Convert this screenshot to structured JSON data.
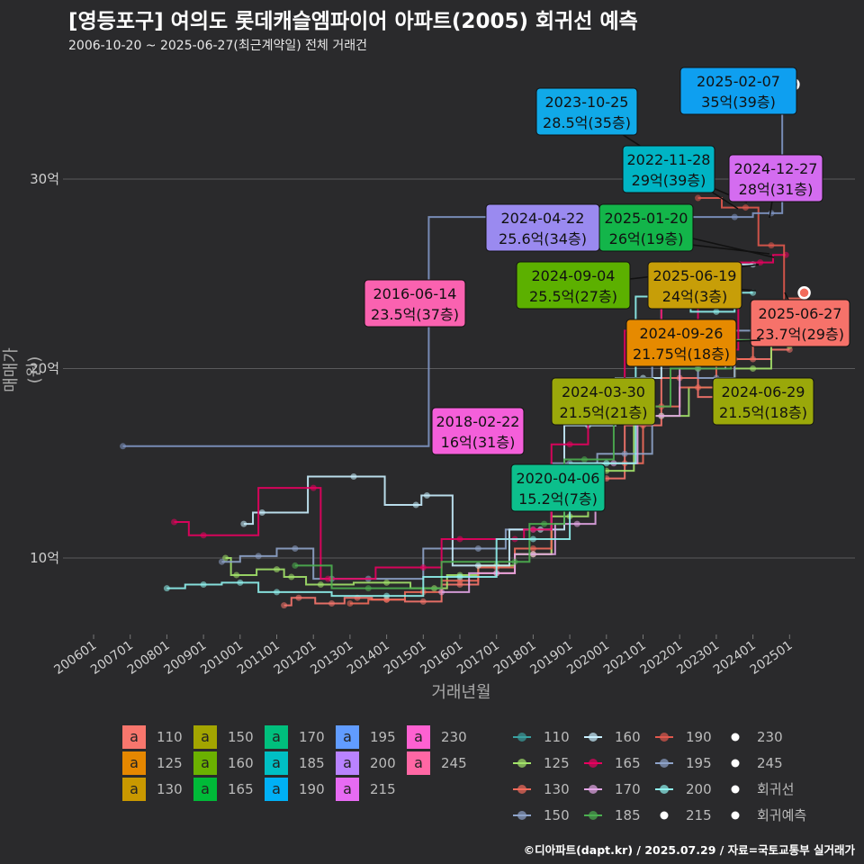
{
  "title": "[영등포구] 여의도 롯데캐슬엠파이어 아파트(2005) 회귀선 예측",
  "subtitle": "2006-10-20 ~ 2025-06-27(최근계약일) 전체 거래건",
  "credit": "©디아파트(dapt.kr) / 2025.07.29 / 자료=국토교통부 실거래가",
  "chart_data": {
    "type": "line",
    "xlabel": "거래년월",
    "ylabel": "매매가(원)",
    "x_ticks": [
      "200601",
      "200701",
      "200801",
      "200901",
      "201001",
      "201101",
      "201201",
      "201301",
      "201401",
      "201501",
      "201601",
      "201701",
      "201801",
      "201901",
      "202001",
      "202101",
      "202201",
      "202301",
      "202401",
      "202501"
    ],
    "y_ticks": [
      "10억",
      "20억",
      "30억"
    ],
    "y_tick_values": [
      10,
      20,
      30
    ],
    "y_unit": "억",
    "ylim": [
      6,
      34.5
    ],
    "xlim": [
      2005.6,
      2025.9
    ],
    "grid": true,
    "series": [
      {
        "name": "110",
        "color": "#f8766d",
        "points": [
          [
            2011.2,
            7.5
          ],
          [
            2011.6,
            7.9
          ],
          [
            2012.5,
            7.6
          ],
          [
            2013.2,
            7.9
          ],
          [
            2014.0,
            7.8
          ],
          [
            2015.0,
            7.7
          ],
          [
            2016.0,
            8.6
          ],
          [
            2017.0,
            9.2
          ],
          [
            2018.0,
            10.2
          ],
          [
            2019.0,
            12.8
          ],
          [
            2020.0,
            14.2
          ],
          [
            2021.0,
            17.0
          ],
          [
            2022.0,
            19.5
          ],
          [
            2023.0,
            18.5
          ],
          [
            2024.0,
            20.5
          ],
          [
            2025.0,
            21.0
          ]
        ]
      },
      {
        "name": "125",
        "color": "#a3e36a",
        "points": [
          [
            2009.6,
            10.0
          ],
          [
            2009.9,
            9.1
          ],
          [
            2011.0,
            9.4
          ],
          [
            2011.4,
            9.0
          ],
          [
            2012.2,
            8.6
          ],
          [
            2014.0,
            8.7
          ],
          [
            2015.3,
            8.4
          ],
          [
            2016.0,
            9.1
          ],
          [
            2017.0,
            9.6
          ],
          [
            2018.0,
            10.2
          ],
          [
            2019.0,
            12.2
          ],
          [
            2020.0,
            14.6
          ],
          [
            2021.5,
            17.5
          ],
          [
            2023.0,
            19.0
          ],
          [
            2024.0,
            20.0
          ],
          [
            2025.0,
            21.2
          ]
        ]
      },
      {
        "name": "130",
        "color": "#f26b5b",
        "points": [
          [
            2013.0,
            7.6
          ],
          [
            2014.0,
            7.8
          ],
          [
            2015.0,
            8.2
          ],
          [
            2016.0,
            8.8
          ],
          [
            2017.0,
            9.5
          ],
          [
            2018.0,
            10.5
          ],
          [
            2019.0,
            13.0
          ],
          [
            2020.5,
            15.0
          ],
          [
            2021.5,
            18.0
          ],
          [
            2022.5,
            19.0
          ],
          [
            2023.5,
            20.5
          ],
          [
            2024.5,
            21.75
          ],
          [
            2025.4,
            23.7
          ]
        ]
      },
      {
        "name": "150",
        "color": "#8ea3c9",
        "points": [
          [
            2009.5,
            9.8
          ],
          [
            2010.5,
            10.1
          ],
          [
            2011.5,
            10.5
          ],
          [
            2012.5,
            8.9
          ],
          [
            2013.5,
            8.9
          ],
          [
            2016.5,
            10.5
          ],
          [
            2018.0,
            11.5
          ],
          [
            2019.0,
            15.0
          ],
          [
            2020.5,
            15.5
          ],
          [
            2022.0,
            21.0
          ],
          [
            2023.0,
            19.5
          ],
          [
            2024.0,
            22.0
          ]
        ]
      },
      {
        "name": "160",
        "color": "#c9f0ff",
        "points": [
          [
            2010.1,
            11.8
          ],
          [
            2010.6,
            12.4
          ],
          [
            2013.1,
            14.3
          ],
          [
            2014.8,
            12.8
          ],
          [
            2015.1,
            13.3
          ],
          [
            2016.5,
            9.6
          ],
          [
            2018.2,
            11.5
          ],
          [
            2019.5,
            17.0
          ],
          [
            2021.0,
            19.5
          ],
          [
            2022.0,
            25.5
          ],
          [
            2023.0,
            23.5
          ],
          [
            2024.0,
            25.5
          ]
        ]
      },
      {
        "name": "165",
        "color": "#e8005f",
        "points": [
          [
            2008.2,
            11.9
          ],
          [
            2009.0,
            11.2
          ],
          [
            2012.0,
            13.7
          ],
          [
            2012.4,
            8.9
          ],
          [
            2015.0,
            9.5
          ],
          [
            2016.0,
            11.0
          ],
          [
            2017.5,
            11.0
          ],
          [
            2018.0,
            11.5
          ],
          [
            2019.0,
            16.0
          ],
          [
            2020.0,
            19.0
          ],
          [
            2021.0,
            22.0
          ],
          [
            2022.0,
            24.5
          ],
          [
            2023.0,
            21.0
          ],
          [
            2024.2,
            25.6
          ],
          [
            2024.9,
            26.0
          ]
        ]
      },
      {
        "name": "170",
        "color": "#e3a5e6",
        "points": [
          [
            2015.5,
            8.2
          ],
          [
            2017.0,
            9.2
          ],
          [
            2018.0,
            10.2
          ],
          [
            2019.2,
            11.8
          ],
          [
            2020.2,
            15.0
          ],
          [
            2021.5,
            17.5
          ],
          [
            2022.5,
            20.0
          ],
          [
            2024.0,
            21.5
          ]
        ]
      },
      {
        "name": "185",
        "color": "#4caf50",
        "points": [
          [
            2011.5,
            9.6
          ],
          [
            2013.5,
            8.4
          ],
          [
            2017.5,
            9.8
          ],
          [
            2018.3,
            11.8
          ],
          [
            2019.4,
            15.2
          ],
          [
            2021.0,
            18.0
          ],
          [
            2022.5,
            20.0
          ],
          [
            2024.3,
            21.5
          ]
        ]
      },
      {
        "name": "190",
        "color": "#e0584d",
        "points": [
          [
            2022.5,
            29.0
          ],
          [
            2023.8,
            28.5
          ],
          [
            2024.5,
            26.5
          ],
          [
            2025.2,
            21.8
          ]
        ]
      },
      {
        "name": "195",
        "color": "#7f96c4",
        "points": [
          [
            2006.8,
            15.9
          ],
          [
            2023.5,
            28.0
          ],
          [
            2024.5,
            28.2
          ],
          [
            2025.1,
            35.0
          ]
        ]
      },
      {
        "name": "200",
        "color": "#8ff2ee",
        "points": [
          [
            2008.0,
            8.4
          ],
          [
            2009.0,
            8.6
          ],
          [
            2010.0,
            8.7
          ],
          [
            2011.0,
            8.2
          ],
          [
            2014.0,
            8.0
          ],
          [
            2016.0,
            9.0
          ],
          [
            2018.0,
            11.0
          ],
          [
            2020.0,
            15.0
          ],
          [
            2021.6,
            23.8
          ],
          [
            2023.0,
            23.0
          ],
          [
            2024.0,
            24.0
          ]
        ]
      }
    ],
    "annotations": [
      {
        "date": "2025-02-07",
        "price": "35억(39층)",
        "color": "#0e9ff0"
      },
      {
        "date": "2023-10-25",
        "price": "28.5억(35층)",
        "color": "#10a9e8"
      },
      {
        "date": "2022-11-28",
        "price": "29억(39층)",
        "color": "#00b4c4"
      },
      {
        "date": "2024-12-27",
        "price": "28억(31층)",
        "color": "#d46cf0"
      },
      {
        "date": "2024-04-22",
        "price": "25.6억(34층)",
        "color": "#9a8af0"
      },
      {
        "date": "2025-01-20",
        "price": "26억(19층)",
        "color": "#13b54a"
      },
      {
        "date": "2024-09-04",
        "price": "25.5억(27층)",
        "color": "#5cb000"
      },
      {
        "date": "2025-06-19",
        "price": "24억(3층)",
        "color": "#c79e08"
      },
      {
        "date": "2016-06-14",
        "price": "23.5억(37층)",
        "color": "#fa62b0"
      },
      {
        "date": "2025-06-27",
        "price": "23.7억(29층)",
        "color": "#f6726a"
      },
      {
        "date": "2024-09-26",
        "price": "21.75억(18층)",
        "color": "#e68a00"
      },
      {
        "date": "2024-03-30",
        "price": "21.5억(21층)",
        "color": "#9aa80a"
      },
      {
        "date": "2024-06-29",
        "price": "21.5억(18층)",
        "color": "#9aa80a"
      },
      {
        "date": "2018-02-22",
        "price": "16억(31층)",
        "color": "#f45fda"
      },
      {
        "date": "2020-04-06",
        "price": "15.2억(7층)",
        "color": "#0cbf8c"
      }
    ]
  },
  "legend_fill": {
    "glyph": "a",
    "items": [
      {
        "label": "110",
        "color": "#f8766d"
      },
      {
        "label": "125",
        "color": "#e58700"
      },
      {
        "label": "130",
        "color": "#c99800"
      },
      {
        "label": "150",
        "color": "#a3a500"
      },
      {
        "label": "160",
        "color": "#6bb100"
      },
      {
        "label": "165",
        "color": "#00ba38"
      },
      {
        "label": "170",
        "color": "#00bf7d"
      },
      {
        "label": "185",
        "color": "#00bfc4"
      },
      {
        "label": "190",
        "color": "#00b0f6"
      },
      {
        "label": "195",
        "color": "#619cff"
      },
      {
        "label": "200",
        "color": "#b983ff"
      },
      {
        "label": "215",
        "color": "#e76bf3"
      },
      {
        "label": "230",
        "color": "#fd61d1"
      },
      {
        "label": "245",
        "color": "#ff67a4"
      }
    ]
  },
  "legend_line": {
    "items": [
      {
        "label": "110",
        "color": "#3aa0a0",
        "kind": "line"
      },
      {
        "label": "125",
        "color": "#a3e36a",
        "kind": "line"
      },
      {
        "label": "130",
        "color": "#f26b5b",
        "kind": "line"
      },
      {
        "label": "150",
        "color": "#8ea3c9",
        "kind": "line"
      },
      {
        "label": "160",
        "color": "#c9f0ff",
        "kind": "line"
      },
      {
        "label": "165",
        "color": "#e8005f",
        "kind": "line"
      },
      {
        "label": "170",
        "color": "#e3a5e6",
        "kind": "line"
      },
      {
        "label": "185",
        "color": "#4caf50",
        "kind": "line"
      },
      {
        "label": "190",
        "color": "#e0584d",
        "kind": "line"
      },
      {
        "label": "195",
        "color": "#8ea3c9",
        "kind": "line"
      },
      {
        "label": "200",
        "color": "#8ff2ee",
        "kind": "line"
      },
      {
        "label": "215",
        "color": "#ffffff",
        "kind": "dot"
      },
      {
        "label": "230",
        "color": "#ffffff",
        "kind": "dot"
      },
      {
        "label": "245",
        "color": "#ffffff",
        "kind": "dot"
      },
      {
        "label": "회귀선",
        "color": "#ffffff",
        "kind": "dot"
      },
      {
        "label": "회귀예측",
        "color": "#ffffff",
        "kind": "dot"
      }
    ]
  }
}
